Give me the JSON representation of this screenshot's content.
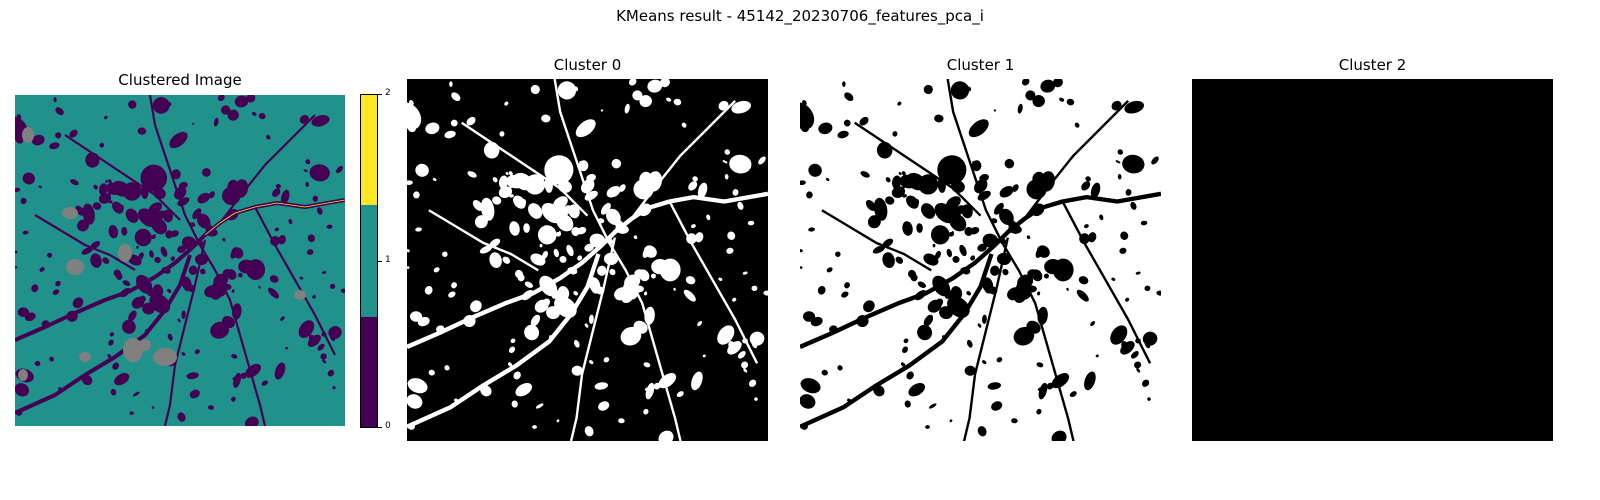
{
  "figure": {
    "title": "KMeans result - 45142_20230706_features_pca_i"
  },
  "chart_data": [
    {
      "type": "heatmap",
      "title": "Clustered Image",
      "description_values": "cluster label map with values 0, 1, 2; nodata shown gray",
      "colormap": [
        "#440154",
        "#21918c",
        "#fde725"
      ],
      "nodata_color": "#808080",
      "colorbar": {
        "ticks": [
          "0",
          "1",
          "2"
        ],
        "range": [
          0,
          2
        ],
        "levels": [
          0,
          1,
          2
        ]
      },
      "axes_visible": false
    },
    {
      "type": "heatmap",
      "title": "Cluster 0",
      "mask_of_cluster": 0,
      "colors": [
        "#000000",
        "#ffffff"
      ],
      "axes_visible": false
    },
    {
      "type": "heatmap",
      "title": "Cluster 1",
      "mask_of_cluster": 1,
      "colors": [
        "#000000",
        "#ffffff"
      ],
      "axes_visible": false
    },
    {
      "type": "heatmap",
      "title": "Cluster 2",
      "mask_of_cluster": 2,
      "colors": [
        "#000000",
        "#ffffff"
      ],
      "axes_visible": false
    }
  ]
}
